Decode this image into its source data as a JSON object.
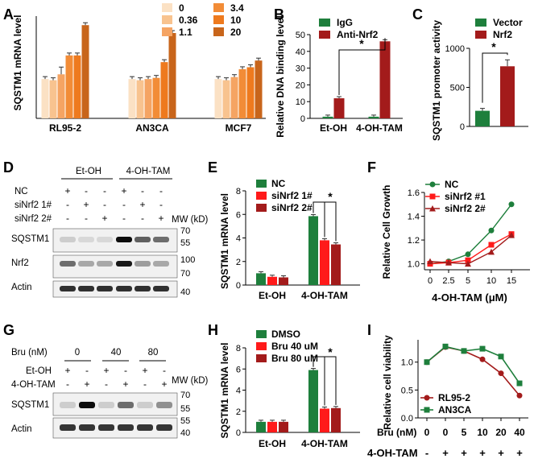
{
  "colors": {
    "dose": [
      "#fbe1c4",
      "#f8c38f",
      "#f5a463",
      "#f28c37",
      "#ee7a1e",
      "#c8651b"
    ],
    "green": "#1e7f3c",
    "red": "#ff1a1a",
    "darkred": "#a31b1b"
  },
  "panel_letters": [
    "A",
    "B",
    "C",
    "D",
    "E",
    "F",
    "G",
    "H",
    "I"
  ],
  "blot_d": {
    "header_left": "Et-OH",
    "header_right": "4-OH-TAM",
    "row_labels": [
      "NC",
      "siNrf2 1#",
      "siNrf2 2#"
    ],
    "row_marks": [
      [
        "+",
        "-",
        "-",
        "+",
        "-",
        "-"
      ],
      [
        "-",
        "+",
        "-",
        "-",
        "+",
        "-"
      ],
      [
        "-",
        "-",
        "+",
        "-",
        "-",
        "+"
      ]
    ],
    "mw_title": "MW (kD)",
    "bands": [
      "SQSTM1",
      "Nrf2",
      "Actin"
    ],
    "mw_values": [
      "70",
      "55",
      "100",
      "70",
      "40"
    ]
  },
  "blot_g": {
    "bru_label": "Bru (nM)",
    "bru_values": [
      "0",
      "40",
      "80"
    ],
    "row_labels": [
      "Et-OH",
      "4-OH-TAM"
    ],
    "row_marks": [
      [
        "+",
        "-",
        "+",
        "-",
        "+",
        "-"
      ],
      [
        "-",
        "+",
        "-",
        "+",
        "-",
        "+"
      ]
    ],
    "mw_title": "MW (kD)",
    "bands": [
      "SQSTM1",
      "Actin"
    ],
    "mw_values": [
      "70",
      "55",
      "55",
      "40"
    ]
  },
  "chart_data": [
    {
      "panel": "A",
      "type": "bar",
      "ylabel": "SQSTM1 mRNA level",
      "categories": [
        "RL95-2",
        "AN3CA",
        "MCF7"
      ],
      "legend": [
        "0",
        "0.36",
        "1.1",
        "3.4",
        "10",
        "20"
      ],
      "series": [
        {
          "name": "0",
          "values": [
            1.0,
            1.0,
            1.0
          ]
        },
        {
          "name": "0.36",
          "values": [
            0.97,
            0.97,
            0.97
          ]
        },
        {
          "name": "1.1",
          "values": [
            1.12,
            1.0,
            1.05
          ]
        },
        {
          "name": "3.4",
          "values": [
            1.6,
            1.03,
            1.25
          ]
        },
        {
          "name": "10",
          "values": [
            1.6,
            1.43,
            1.3
          ]
        },
        {
          "name": "20",
          "values": [
            2.37,
            2.17,
            1.47
          ]
        }
      ],
      "errors": [
        0.05,
        0.05,
        0.17,
        0.05,
        0.05,
        0.05
      ],
      "ylim": [
        0,
        2.6
      ]
    },
    {
      "panel": "B",
      "type": "bar",
      "ylabel": "Relative DNA binding level",
      "categories": [
        "Et-OH",
        "4-OH-TAM"
      ],
      "legend": [
        "IgG",
        "Anti-Nrf2"
      ],
      "series": [
        {
          "name": "IgG",
          "values": [
            1,
            1
          ]
        },
        {
          "name": "Anti-Nrf2",
          "values": [
            12,
            46
          ]
        }
      ],
      "yticks": [
        "0",
        "10",
        "20",
        "30",
        "40",
        "50"
      ],
      "ylim": [
        0,
        50
      ],
      "annotation": "*"
    },
    {
      "panel": "C",
      "type": "bar",
      "ylabel": "SQSTM1 promoter activity",
      "categories": [
        "Vector",
        "Nrf2"
      ],
      "legend": [
        "Vector",
        "Nrf2"
      ],
      "values": [
        200,
        770
      ],
      "yticks": [
        "0",
        "500",
        "1000"
      ],
      "ylim": [
        0,
        1000
      ],
      "annotation": "*"
    },
    {
      "panel": "E",
      "type": "bar",
      "ylabel": "SQSTM1 mRNA level",
      "categories": [
        "Et-OH",
        "4-OH-TAM"
      ],
      "legend": [
        "NC",
        "siNrf2 1#",
        "siNrf2 2#"
      ],
      "series": [
        {
          "name": "NC",
          "values": [
            1.0,
            5.85
          ]
        },
        {
          "name": "siNrf2 1#",
          "values": [
            0.7,
            3.8
          ]
        },
        {
          "name": "siNrf2 2#",
          "values": [
            0.65,
            3.45
          ]
        }
      ],
      "yticks": [
        "0",
        "2",
        "4",
        "6",
        "8"
      ],
      "ylim": [
        0,
        8
      ],
      "annotation": "*"
    },
    {
      "panel": "F",
      "type": "line",
      "xlabel": "4-OH-TAM (μM)",
      "ylabel": "Relative Cell Growth",
      "x": [
        "0",
        "2.5",
        "5",
        "10",
        "15"
      ],
      "legend": [
        "NC",
        "siNrf2 #1",
        "siNrf2 2#"
      ],
      "series": [
        {
          "name": "NC",
          "values": [
            1.0,
            1.02,
            1.08,
            1.28,
            1.5
          ]
        },
        {
          "name": "siNrf2 #1",
          "values": [
            1.0,
            1.01,
            1.03,
            1.16,
            1.25
          ]
        },
        {
          "name": "siNrf2 2#",
          "values": [
            1.02,
            1.01,
            1.0,
            1.1,
            1.24
          ]
        }
      ],
      "yticks": [
        "1.0",
        "1.2",
        "1.4",
        "1.6"
      ],
      "ylim": [
        0.95,
        1.6
      ]
    },
    {
      "panel": "H",
      "type": "bar",
      "ylabel": "SQSTM1 mRNA level",
      "categories": [
        "Et-OH",
        "4-OH-TAM"
      ],
      "legend": [
        "DMSO",
        "Bru 40 uM",
        "Bru 80 uM"
      ],
      "series": [
        {
          "name": "DMSO",
          "values": [
            1.0,
            5.9
          ]
        },
        {
          "name": "Bru 40 uM",
          "values": [
            1.0,
            2.25
          ]
        },
        {
          "name": "Bru 80 uM",
          "values": [
            1.0,
            2.3
          ]
        }
      ],
      "yticks": [
        "0",
        "2",
        "4",
        "6",
        "8"
      ],
      "ylim": [
        0,
        8
      ],
      "annotation": "*"
    },
    {
      "panel": "I",
      "type": "line",
      "ylabel": "Relative cell viability",
      "xlabel": "Bru (nM)",
      "x": [
        "0",
        "0",
        "5",
        "10",
        "20",
        "40"
      ],
      "row2_label": "4-OH-TAM",
      "row2_values": [
        "-",
        "+",
        "+",
        "+",
        "+",
        "+"
      ],
      "legend": [
        "RL95-2",
        "AN3CA"
      ],
      "series": [
        {
          "name": "RL95-2",
          "values": [
            1.0,
            1.27,
            1.2,
            1.05,
            0.8,
            0.4
          ]
        },
        {
          "name": "AN3CA",
          "values": [
            1.0,
            1.28,
            1.2,
            1.24,
            1.1,
            0.62
          ]
        }
      ],
      "yticks": [
        "0.0",
        "0.5",
        "1.0"
      ],
      "ylim": [
        0,
        1.4
      ]
    }
  ]
}
